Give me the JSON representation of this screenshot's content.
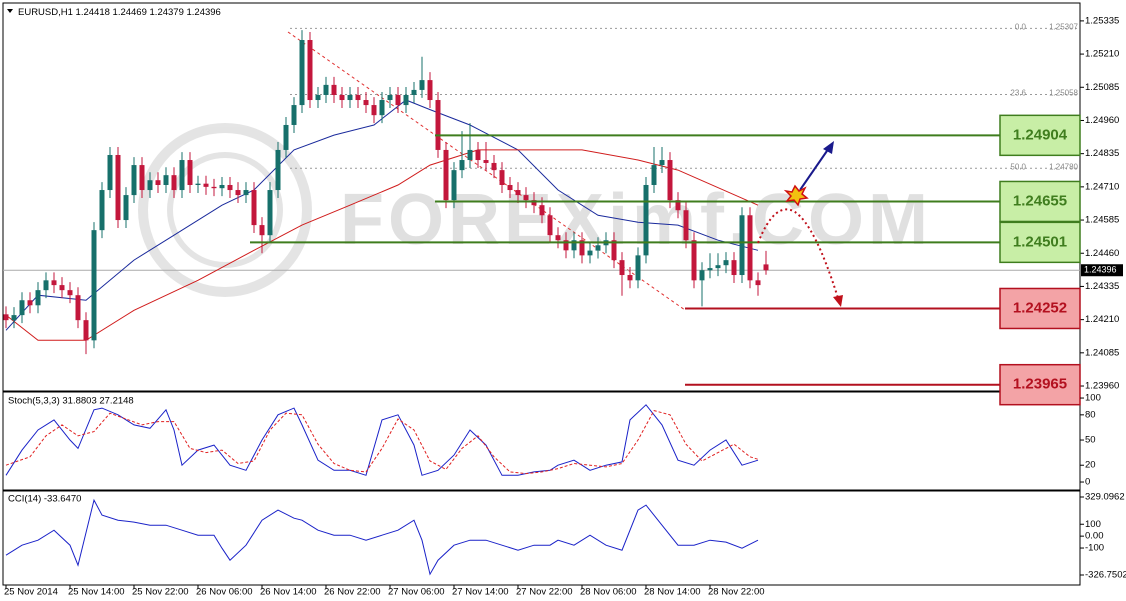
{
  "chart_data": [
    {
      "type": "candlestick",
      "symbol": "EURUSD,H1",
      "ohlc": [
        1.24418,
        1.24469,
        1.24379,
        1.24396
      ],
      "up_color": "#17706b",
      "down_color": "#c3173c",
      "candles": [
        [
          1.2423,
          1.2426,
          1.24178,
          1.24208
        ],
        [
          1.24208,
          1.24257,
          1.24178,
          1.24227
        ],
        [
          1.24227,
          1.24313,
          1.24197,
          1.24283
        ],
        [
          1.24283,
          1.24313,
          1.24234,
          1.24264
        ],
        [
          1.24264,
          1.24351,
          1.24234,
          1.24321
        ],
        [
          1.24321,
          1.24388,
          1.24291,
          1.24358
        ],
        [
          1.24358,
          1.24388,
          1.2431,
          1.2434
        ],
        [
          1.2434,
          1.2437,
          1.24291,
          1.24321
        ],
        [
          1.24321,
          1.24351,
          1.24272,
          1.24302
        ],
        [
          1.24302,
          1.24332,
          1.24178,
          1.24208
        ],
        [
          1.24208,
          1.24238,
          1.2408,
          1.24132
        ],
        [
          1.24132,
          1.24577,
          1.24102,
          1.24547
        ],
        [
          1.24547,
          1.24728,
          1.24517,
          1.24698
        ],
        [
          1.24698,
          1.2486,
          1.24668,
          1.2483
        ],
        [
          1.2483,
          1.2486,
          1.24555,
          1.24585
        ],
        [
          1.24585,
          1.24709,
          1.24555,
          1.24679
        ],
        [
          1.24679,
          1.24822,
          1.24649,
          1.24792
        ],
        [
          1.24792,
          1.24822,
          1.24668,
          1.24698
        ],
        [
          1.24698,
          1.24765,
          1.24668,
          1.24735
        ],
        [
          1.24735,
          1.24765,
          1.24687,
          1.24717
        ],
        [
          1.24717,
          1.24784,
          1.24687,
          1.24754
        ],
        [
          1.24754,
          1.24784,
          1.24668,
          1.24698
        ],
        [
          1.24698,
          1.24841,
          1.24668,
          1.24811
        ],
        [
          1.24811,
          1.24841,
          1.24687,
          1.24717
        ],
        [
          1.24717,
          1.24752,
          1.24687,
          1.24722
        ],
        [
          1.24722,
          1.24752,
          1.2468,
          1.2471
        ],
        [
          1.2471,
          1.2474,
          1.24675,
          1.24705
        ],
        [
          1.24705,
          1.24747,
          1.24675,
          1.24717
        ],
        [
          1.24717,
          1.24747,
          1.24668,
          1.24698
        ],
        [
          1.24698,
          1.24728,
          1.24649,
          1.24679
        ],
        [
          1.24679,
          1.24728,
          1.24649,
          1.24698
        ],
        [
          1.24698,
          1.24728,
          1.24536,
          1.24566
        ],
        [
          1.24566,
          1.24596,
          1.2446,
          1.24528
        ],
        [
          1.24528,
          1.24728,
          1.24498,
          1.24698
        ],
        [
          1.24698,
          1.24879,
          1.24668,
          1.24849
        ],
        [
          1.24849,
          1.24973,
          1.24819,
          1.24943
        ],
        [
          1.24943,
          1.25048,
          1.24913,
          1.25018
        ],
        [
          1.25018,
          1.253,
          1.24988,
          1.25263
        ],
        [
          1.25263,
          1.25293,
          1.25007,
          1.25037
        ],
        [
          1.25037,
          1.25086,
          1.25007,
          1.25056
        ],
        [
          1.25056,
          1.25124,
          1.25026,
          1.25094
        ],
        [
          1.25094,
          1.25124,
          1.25026,
          1.25056
        ],
        [
          1.25056,
          1.25086,
          1.25007,
          1.25037
        ],
        [
          1.25037,
          1.25086,
          1.25007,
          1.25056
        ],
        [
          1.25056,
          1.25086,
          1.25007,
          1.25037
        ],
        [
          1.25037,
          1.25067,
          1.24988,
          1.25018
        ],
        [
          1.25018,
          1.25048,
          1.2495,
          1.2498
        ],
        [
          1.2498,
          1.25067,
          1.2495,
          1.25037
        ],
        [
          1.25037,
          1.25086,
          1.25007,
          1.25056
        ],
        [
          1.25056,
          1.25086,
          1.24988,
          1.25018
        ],
        [
          1.25018,
          1.25086,
          1.24988,
          1.25056
        ],
        [
          1.25056,
          1.25105,
          1.25026,
          1.25075
        ],
        [
          1.25075,
          1.252,
          1.25045,
          1.25112
        ],
        [
          1.25112,
          1.25142,
          1.25007,
          1.25037
        ],
        [
          1.25037,
          1.25067,
          1.24819,
          1.24849
        ],
        [
          1.24849,
          1.24879,
          1.2463,
          1.2466
        ],
        [
          1.2466,
          1.24803,
          1.2463,
          1.24773
        ],
        [
          1.24773,
          1.2492,
          1.24743,
          1.24811
        ],
        [
          1.24811,
          1.2495,
          1.24781,
          1.24849
        ],
        [
          1.24849,
          1.24879,
          1.24781,
          1.24811
        ],
        [
          1.24811,
          1.24879,
          1.2477,
          1.248
        ],
        [
          1.248,
          1.2483,
          1.24743,
          1.24773
        ],
        [
          1.24773,
          1.24803,
          1.24687,
          1.24717
        ],
        [
          1.24717,
          1.24747,
          1.24668,
          1.24698
        ],
        [
          1.24698,
          1.24728,
          1.24649,
          1.24679
        ],
        [
          1.24679,
          1.24709,
          1.2463,
          1.2466
        ],
        [
          1.2466,
          1.2469,
          1.24611,
          1.24641
        ],
        [
          1.24641,
          1.24671,
          1.24573,
          1.24603
        ],
        [
          1.24603,
          1.24633,
          1.24498,
          1.24528
        ],
        [
          1.24528,
          1.24558,
          1.24479,
          1.24509
        ],
        [
          1.24509,
          1.24539,
          1.24441,
          1.24471
        ],
        [
          1.24471,
          1.24539,
          1.24441,
          1.24509
        ],
        [
          1.24509,
          1.24539,
          1.24422,
          1.24452
        ],
        [
          1.24452,
          1.245,
          1.24422,
          1.2447
        ],
        [
          1.2447,
          1.2452,
          1.2444,
          1.2449
        ],
        [
          1.2449,
          1.24539,
          1.2446,
          1.24509
        ],
        [
          1.24509,
          1.24539,
          1.24404,
          1.24434
        ],
        [
          1.24434,
          1.24464,
          1.243,
          1.24378
        ],
        [
          1.24378,
          1.24408,
          1.24328,
          1.24358
        ],
        [
          1.24358,
          1.24482,
          1.24328,
          1.24452
        ],
        [
          1.24452,
          1.24747,
          1.24422,
          1.24717
        ],
        [
          1.24717,
          1.2486,
          1.24687,
          1.24792
        ],
        [
          1.24792,
          1.2486,
          1.24762,
          1.24811
        ],
        [
          1.24811,
          1.24841,
          1.2463,
          1.2466
        ],
        [
          1.2466,
          1.2469,
          1.24592,
          1.24622
        ],
        [
          1.24622,
          1.24652,
          1.24479,
          1.24509
        ],
        [
          1.24509,
          1.24539,
          1.24328,
          1.24358
        ],
        [
          1.24358,
          1.24426,
          1.2426,
          1.24396
        ],
        [
          1.24396,
          1.2446,
          1.24366,
          1.24404
        ],
        [
          1.24404,
          1.2446,
          1.24374,
          1.24415
        ],
        [
          1.24415,
          1.24464,
          1.24385,
          1.24434
        ],
        [
          1.24434,
          1.24464,
          1.24348,
          1.24378
        ],
        [
          1.24378,
          1.24633,
          1.24348,
          1.24603
        ],
        [
          1.24603,
          1.24633,
          1.24328,
          1.24358
        ],
        [
          1.24358,
          1.24388,
          1.243,
          1.2434
        ],
        [
          1.24418,
          1.24469,
          1.24379,
          1.24396
        ]
      ],
      "series": [
        {
          "color": "#1a2a9c",
          "x": [
            0,
            4,
            10,
            16,
            21,
            27,
            31,
            36,
            41,
            46,
            50,
            53,
            58,
            64,
            69,
            74,
            79,
            84,
            89,
            94
          ],
          "values": [
            1.2417,
            1.24302,
            1.24283,
            1.24434,
            1.24528,
            1.24641,
            1.24698,
            1.24849,
            1.24905,
            1.24943,
            1.25037,
            1.25001,
            1.24943,
            1.24849,
            1.24698,
            1.24603,
            1.24577,
            1.24566,
            1.24509,
            1.24471
          ]
        },
        {
          "color": "#d01c1c",
          "x": [
            0,
            4,
            10,
            16,
            24,
            31,
            37,
            43,
            49,
            53,
            59,
            64,
            72,
            79,
            84,
            94
          ],
          "values": [
            1.24227,
            1.24132,
            1.24132,
            1.24245,
            1.24358,
            1.24471,
            1.24566,
            1.24641,
            1.24717,
            1.24792,
            1.24849,
            1.24849,
            1.24849,
            1.24811,
            1.24773,
            1.24641
          ]
        }
      ],
      "levels": [
        {
          "value": 1.24904,
          "color": "#3f7d1e",
          "fill": "#c8eea6"
        },
        {
          "value": 1.24655,
          "color": "#3f7d1e",
          "fill": "#c8eea6"
        },
        {
          "value": 1.24501,
          "color": "#3f7d1e",
          "fill": "#c8eea6"
        },
        {
          "value": 1.24252,
          "color": "#b3101f",
          "fill": "#f3a3a6"
        },
        {
          "value": 1.23965,
          "color": "#b3101f",
          "fill": "#f3a3a6"
        }
      ],
      "fib": [
        {
          "label": "0.0",
          "price": 1.25307
        },
        {
          "label": "23.6",
          "price": 1.25058
        },
        {
          "label": "50.0",
          "price": {
            "value": 1.2478,
            "label": "1.24780"
          }
        }
      ],
      "current_price": 1.24396,
      "watermark": "FOREXimf.COM",
      "xlim": [
        -0.375,
        134.25
      ],
      "ylim": [
        1.23945,
        1.25376
      ],
      "yticks": [
        1.25335,
        {
          "value": 1.2521,
          "label": "1.25210"
        },
        1.25085,
        {
          "value": 1.2496,
          "label": "1.24960"
        },
        1.24835,
        {
          "value": 1.2471,
          "label": "1.24710"
        },
        1.24585,
        {
          "value": 1.2446,
          "label": "1.24460"
        },
        1.24335,
        {
          "value": 1.2421,
          "label": "1.24210"
        },
        1.24085,
        {
          "value": 1.2396,
          "label": "1.23960"
        }
      ],
      "xticks": [
        {
          "value": 0,
          "label": "25 Nov 2014"
        },
        {
          "value": 8,
          "label": "25 Nov 14:00"
        },
        {
          "value": 16,
          "label": "25 Nov 22:00"
        },
        {
          "value": 24,
          "label": "26 Nov 06:00"
        },
        {
          "value": 32,
          "label": "26 Nov 14:00"
        },
        {
          "value": 40,
          "label": "26 Nov 22:00"
        },
        {
          "value": 48,
          "label": "27 Nov 06:00"
        },
        {
          "value": 56,
          "label": "27 Nov 14:00"
        },
        {
          "value": 64,
          "label": "27 Nov 22:00"
        },
        {
          "value": 72,
          "label": "28 Nov 06:00"
        },
        {
          "value": 80,
          "label": "28 Nov 14:00"
        },
        {
          "value": 88,
          "label": "28 Nov 22:00"
        }
      ]
    },
    {
      "type": "line",
      "title": "Stoch(5,3,3) 31.8803 27.2148",
      "xlim": [
        -0.375,
        134.25
      ],
      "ylim": [
        -9.5,
        106
      ],
      "yticks": [
        100,
        80,
        50,
        20,
        0
      ],
      "series": [
        {
          "color": "#1a22c8",
          "x": [
            0,
            2,
            4,
            6,
            8,
            9,
            11,
            12,
            14,
            16,
            18,
            20,
            21,
            22,
            24,
            26,
            28,
            30,
            32,
            34,
            36,
            37,
            39,
            41,
            43,
            45,
            47,
            49,
            51,
            52,
            54,
            56,
            58,
            60,
            62,
            64,
            66,
            68,
            69,
            71,
            73,
            75,
            77,
            78,
            80,
            82,
            84,
            86,
            88,
            90,
            92,
            94
          ],
          "values": [
            8,
            38,
            62,
            74,
            50,
            40,
            86,
            88,
            80,
            68,
            64,
            86,
            62,
            20,
            38,
            44,
            20,
            14,
            50,
            80,
            88,
            68,
            26,
            14,
            14,
            8,
            74,
            80,
            44,
            8,
            14,
            32,
            62,
            44,
            8,
            8,
            12,
            14,
            20,
            26,
            14,
            20,
            24,
            74,
            92,
            68,
            26,
            20,
            38,
            50,
            20,
            26
          ]
        },
        {
          "color": "#e02020",
          "dash": true,
          "x": [
            0,
            3,
            5,
            7,
            9,
            11,
            13,
            15,
            17,
            19,
            21,
            23,
            25,
            27,
            29,
            31,
            33,
            35,
            37,
            39,
            41,
            43,
            45,
            47,
            49,
            51,
            53,
            55,
            57,
            59,
            61,
            63,
            65,
            67,
            69,
            71,
            73,
            75,
            77,
            79,
            81,
            83,
            85,
            87,
            89,
            91,
            93,
            94
          ],
          "values": [
            20,
            30,
            55,
            68,
            55,
            60,
            82,
            75,
            68,
            72,
            72,
            40,
            35,
            38,
            22,
            25,
            62,
            82,
            80,
            45,
            22,
            14,
            12,
            40,
            75,
            62,
            25,
            15,
            40,
            55,
            30,
            12,
            10,
            12,
            16,
            22,
            20,
            18,
            22,
            50,
            85,
            80,
            45,
            25,
            35,
            45,
            30,
            27
          ]
        }
      ]
    },
    {
      "type": "line",
      "title": "CCI(14) -33.6470",
      "xlim": [
        -0.375,
        134.25
      ],
      "ylim": [
        -326.7502,
        329.0962
      ],
      "yticks": [
        329.0962,
        100,
        {
          "value": 0,
          "label": "0.00"
        },
        -100,
        -326.7502
      ],
      "series": [
        {
          "color": "#1a22c8",
          "x": [
            0,
            2,
            4,
            6,
            8,
            9,
            11,
            12,
            14,
            16,
            18,
            20,
            22,
            24,
            26,
            27,
            28,
            30,
            32,
            34,
            36,
            37,
            39,
            41,
            43,
            45,
            47,
            49,
            51,
            52,
            53,
            54,
            56,
            58,
            60,
            62,
            64,
            66,
            68,
            69,
            71,
            73,
            75,
            77,
            79,
            80,
            82,
            84,
            86,
            88,
            90,
            92,
            94
          ],
          "values": [
            -160,
            -76,
            -34,
            50,
            -76,
            -244,
            303,
            177,
            134,
            118,
            92,
            92,
            50,
            8,
            8,
            -101,
            -202,
            -76,
            134,
            219,
            151,
            134,
            50,
            8,
            8,
            -34,
            8,
            50,
            134,
            -34,
            -320,
            -202,
            -76,
            -34,
            -34,
            -76,
            -118,
            -76,
            -76,
            -34,
            -76,
            8,
            -76,
            -118,
            219,
            261,
            92,
            -76,
            -76,
            -34,
            -50,
            -101,
            -34
          ]
        }
      ]
    }
  ]
}
